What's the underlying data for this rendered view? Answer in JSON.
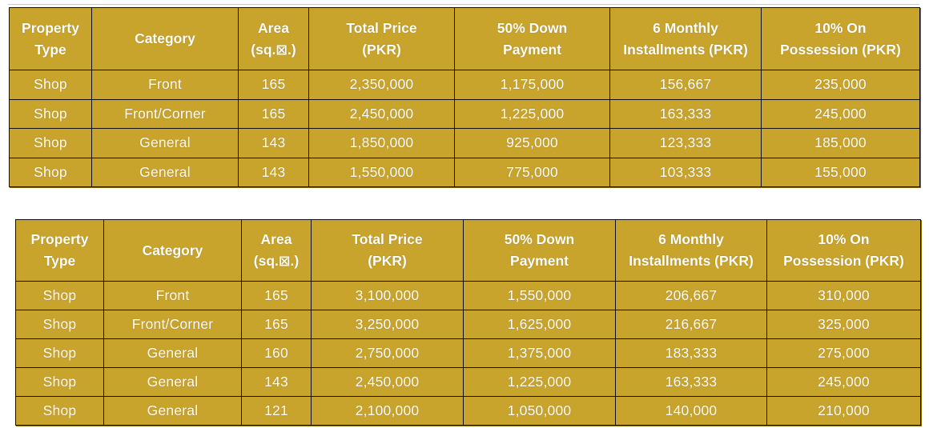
{
  "headers": {
    "property_type": [
      "Property",
      "Type"
    ],
    "category": [
      "Category"
    ],
    "area": [
      "Area",
      "(sq.⊠.)"
    ],
    "total_price": [
      "Total Price",
      "(PKR)"
    ],
    "down_payment": [
      "50% Down",
      "Payment"
    ],
    "monthly_installments": [
      "6 Monthly",
      "Installments (PKR)"
    ],
    "on_possession": [
      "10% On",
      "Possession (PKR)"
    ]
  },
  "table_1": {
    "rows": [
      [
        "Shop",
        "Front",
        "165",
        "2,350,000",
        "1,175,000",
        "156,667",
        "235,000"
      ],
      [
        "Shop",
        "Front/Corner",
        "165",
        "2,450,000",
        "1,225,000",
        "163,333",
        "245,000"
      ],
      [
        "Shop",
        "General",
        "143",
        "1,850,000",
        "925,000",
        "123,333",
        "185,000"
      ],
      [
        "Shop",
        "General",
        "143",
        "1,550,000",
        "775,000",
        "103,333",
        "155,000"
      ]
    ]
  },
  "table_2": {
    "rows": [
      [
        "Shop",
        "Front",
        "165",
        "3,100,000",
        "1,550,000",
        "206,667",
        "310,000"
      ],
      [
        "Shop",
        "Front/Corner",
        "165",
        "3,250,000",
        "1,625,000",
        "216,667",
        "325,000"
      ],
      [
        "Shop",
        "General",
        "160",
        "2,750,000",
        "1,375,000",
        "183,333",
        "275,000"
      ],
      [
        "Shop",
        "General",
        "143",
        "2,450,000",
        "1,225,000",
        "163,333",
        "245,000"
      ],
      [
        "Shop",
        "General",
        "121",
        "2,100,000",
        "1,050,000",
        "140,000",
        "210,000"
      ]
    ]
  },
  "colors": {
    "table_background": "#c9a42c",
    "cell_border": "#111111",
    "text": "#ffffff"
  }
}
